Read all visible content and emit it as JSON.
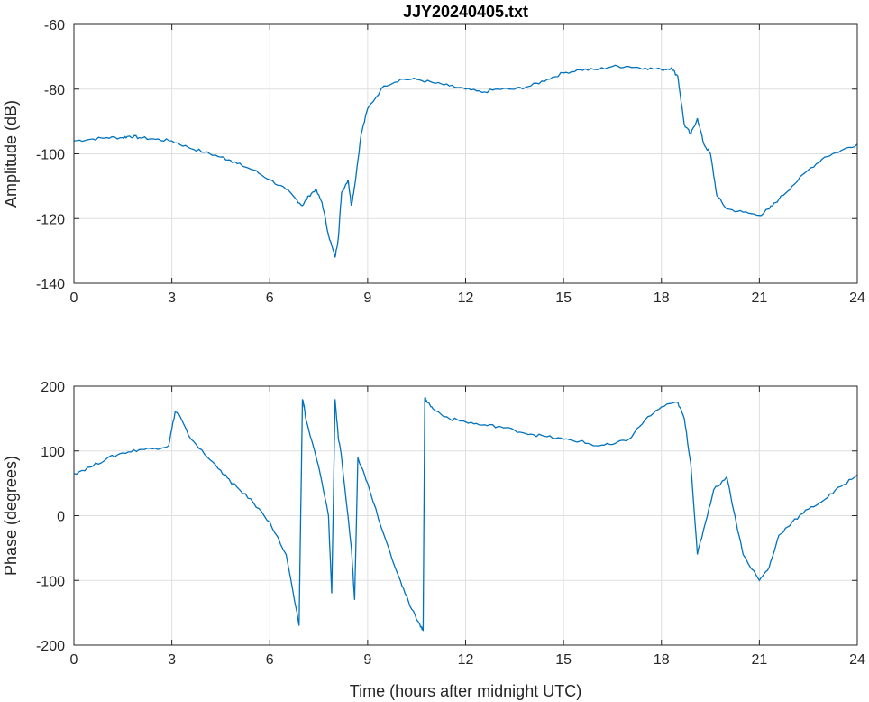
{
  "chart_data": [
    {
      "type": "line",
      "title": "JJY20240405.txt",
      "xlabel": "",
      "ylabel": "Amplitude (dB)",
      "xlim": [
        0,
        24
      ],
      "ylim": [
        -140,
        -60
      ],
      "xticks": [
        "0",
        "3",
        "6",
        "9",
        "12",
        "15",
        "18",
        "21",
        "24"
      ],
      "yticks": [
        "-60",
        "-80",
        "-100",
        "-120",
        "-140"
      ],
      "xtick_values": [
        0,
        3,
        6,
        9,
        12,
        15,
        18,
        21,
        24
      ],
      "ytick_values": [
        -60,
        -80,
        -100,
        -120,
        -140
      ],
      "grid": true,
      "color": "#0072BD",
      "series": [
        {
          "x": [
            0,
            0.5,
            1,
            1.5,
            1.7,
            2,
            2.5,
            3,
            3.5,
            4,
            4.5,
            4.8,
            5,
            5.5,
            6,
            6.5,
            6.8,
            7,
            7.2,
            7.4,
            7.6,
            7.8,
            8,
            8.1,
            8.2,
            8.4,
            8.5,
            8.6,
            8.8,
            9,
            9.5,
            10,
            10.5,
            11,
            11.5,
            12,
            12.5,
            13,
            13.5,
            14,
            14.5,
            15,
            15.5,
            16,
            16.5,
            17,
            17.5,
            18,
            18.3,
            18.5,
            18.7,
            18.9,
            19.1,
            19.3,
            19.5,
            19.7,
            20,
            20.5,
            21,
            21.3,
            21.6,
            22,
            22.5,
            23,
            23.5,
            24
          ],
          "y": [
            -96,
            -95.5,
            -95,
            -95,
            -94.5,
            -95,
            -95.5,
            -96,
            -98,
            -99.5,
            -101,
            -102,
            -103,
            -105,
            -108,
            -111,
            -114,
            -116,
            -113,
            -111,
            -115,
            -125,
            -132,
            -126,
            -112,
            -108,
            -116,
            -110,
            -94,
            -86,
            -79,
            -77,
            -77,
            -78,
            -79,
            -80,
            -81,
            -80,
            -80,
            -79,
            -77,
            -75,
            -74,
            -74,
            -73,
            -73,
            -73.5,
            -74,
            -73.5,
            -76,
            -91,
            -94,
            -89,
            -97,
            -100,
            -113,
            -117,
            -118,
            -119,
            -117,
            -114,
            -110,
            -105,
            -101,
            -99,
            -97
          ]
        }
      ]
    },
    {
      "type": "line",
      "title": "",
      "xlabel": "Time (hours after midnight UTC)",
      "ylabel": "Phase (degrees)",
      "xlim": [
        0,
        24
      ],
      "ylim": [
        -200,
        200
      ],
      "xticks": [
        "0",
        "3",
        "6",
        "9",
        "12",
        "15",
        "18",
        "21",
        "24"
      ],
      "yticks": [
        "200",
        "100",
        "0",
        "-100",
        "-200"
      ],
      "xtick_values": [
        0,
        3,
        6,
        9,
        12,
        15,
        18,
        21,
        24
      ],
      "ytick_values": [
        200,
        100,
        0,
        -100,
        -200
      ],
      "grid": true,
      "color": "#0072BD",
      "series": [
        {
          "x": [
            0,
            0.5,
            1,
            1.5,
            2,
            2.5,
            2.9,
            3.1,
            3.2,
            3.5,
            4,
            4.5,
            4.8,
            5,
            5.5,
            6,
            6.5,
            6.9,
            7,
            7.05,
            7.1,
            7.5,
            7.8,
            7.9,
            8,
            8.1,
            8.2,
            8.5,
            8.6,
            8.7,
            9,
            9.5,
            10,
            10.3,
            10.6,
            10.7,
            10.75,
            10.8,
            11,
            11.5,
            12,
            12.5,
            13,
            13.5,
            14,
            14.5,
            15,
            15.5,
            16,
            16.5,
            17,
            17.5,
            18,
            18.5,
            18.7,
            18.9,
            19.1,
            19.3,
            19.6,
            20,
            20.5,
            21,
            21.3,
            21.6,
            22,
            22.5,
            23,
            23.5,
            24
          ],
          "y": [
            65,
            75,
            88,
            97,
            102,
            104,
            108,
            160,
            158,
            125,
            95,
            70,
            52,
            44,
            20,
            -10,
            -60,
            -170,
            180,
            170,
            150,
            75,
            0,
            -120,
            180,
            120,
            90,
            -50,
            -130,
            90,
            50,
            -30,
            -100,
            -140,
            -168,
            -178,
            180,
            178,
            165,
            150,
            145,
            140,
            138,
            132,
            126,
            122,
            118,
            115,
            108,
            110,
            118,
            148,
            168,
            175,
            150,
            80,
            -60,
            -20,
            40,
            60,
            -60,
            -100,
            -80,
            -30,
            -10,
            10,
            25,
            45,
            63
          ]
        }
      ]
    }
  ]
}
